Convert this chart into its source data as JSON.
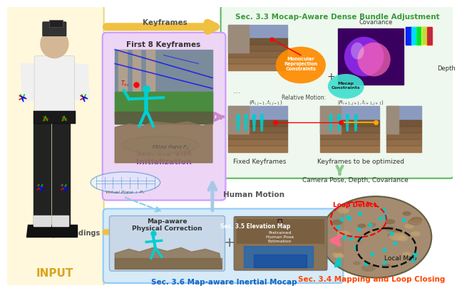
{
  "bg_color_left": "#FFF8DC",
  "bg_color_left_border": "#E8D88A",
  "bg_color_sec33": "#EEF8EE",
  "bg_color_sec33_border": "#5CB85C",
  "bg_color_vim": "#EDD5F5",
  "bg_color_vim_border": "#CC99FF",
  "bg_color_sec36": "#D6EAF8",
  "bg_color_sec36_border": "#90CAF9",
  "input_text": "INPUT",
  "input_color": "#DAA520",
  "keyframes_label": "Keyframes",
  "imu_label": "IMU Readings",
  "human_motion_label": "Human Motion",
  "camera_pose_label": "Camera Pose, Depth, Covariance",
  "sec33_title": "Sec. 3.3 Mocap-Aware Dense Bundle Adjustment",
  "sec33_color": "#3A9A3A",
  "sec32_label": "Sec. 3.2 VIM\nInitialization",
  "sec32_color": "#9932CC",
  "sec34_label": "Sec. 3.4 Mapping and Loop Closing",
  "sec34_color": "#FF4500",
  "sec35_label": "Sec. 3.5 Elevation Map",
  "sec35_color": "#1565C0",
  "sec36_label": "Sec. 3.6 Map-aware Inertial Mocap",
  "sec36_color": "#1565C0",
  "first8_label": "First 8 Keyframes",
  "covariance_label": "Covariance",
  "depth_label": "Depth",
  "fixed_kf_label": "Fixed Keyframes",
  "kf_optimize_label": "Keyframes to be optimized",
  "monocular_label": "Monocular\nReprojection\nConstraints",
  "mocap_label": "Mocap\nConstraints",
  "relative_motion_label": "Relative Motion:",
  "map_aware_label": "Map-aware\nPhysical Correction",
  "pretrained_label": "Pretrained\nHuman Pose\nEstimation",
  "loop_detect_label": "Loop Detect",
  "local_map_label": "Local Map",
  "fitted_plane_label": "Fitted Plane Pₑ",
  "virtual_plane_label": "Virtual Plane ❘ Pᵤ",
  "t_hc_label": "T",
  "t_hc_sub": "hc",
  "arrow_yellow": "#F0C040",
  "arrow_pink": "#FF6B8A",
  "arrow_blue": "#A8C8E8",
  "arrow_green": "#90C890"
}
